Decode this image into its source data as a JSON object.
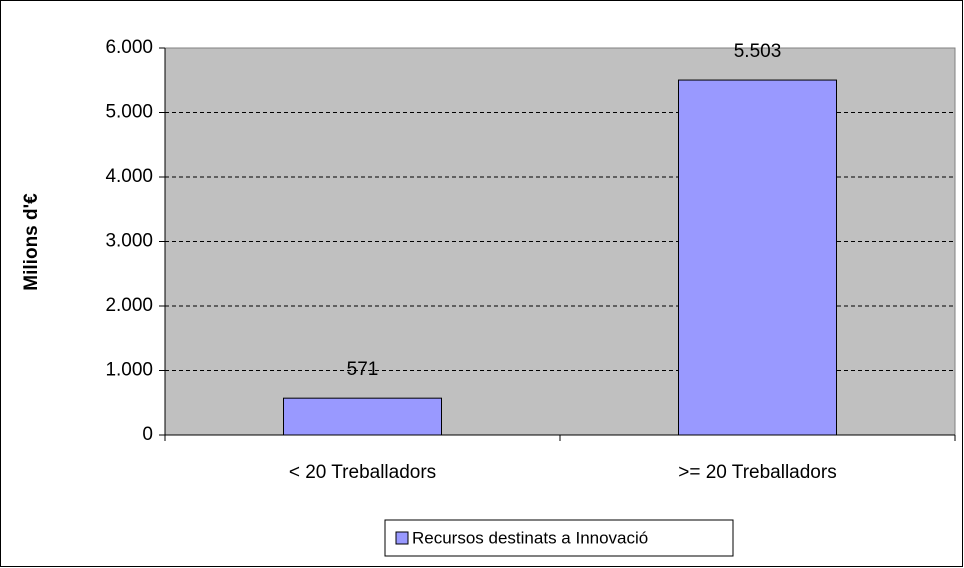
{
  "chart_data": {
    "type": "bar",
    "y_label": "Milions d'€",
    "categories": [
      "< 20 Treballadors",
      ">= 20 Treballadors"
    ],
    "series": [
      {
        "name": "Recursos destinats a Innovació",
        "color": "#9999ff",
        "values": [
          571,
          5503
        ],
        "value_labels": [
          "571",
          "5.503"
        ]
      }
    ],
    "ylim": [
      0,
      6000
    ],
    "yticks": [
      0,
      {
        "value": 1000,
        "label": "1.000"
      },
      {
        "value": 2000,
        "label": "2.000"
      },
      {
        "value": 3000,
        "label": "3.000"
      },
      {
        "value": 4000,
        "label": "4.000"
      },
      {
        "value": 5000,
        "label": "5.000"
      },
      {
        "value": 6000,
        "label": "6.000"
      }
    ],
    "grid": true,
    "plot_background": "#c0c0c0",
    "legend": "bottom"
  }
}
